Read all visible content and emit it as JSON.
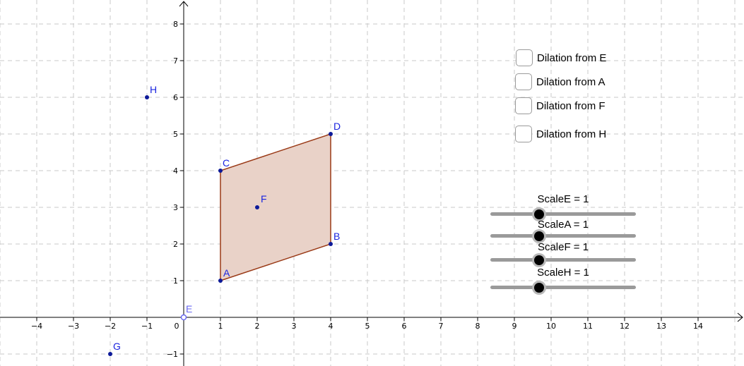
{
  "graph": {
    "axes": {
      "x_range": [
        -5,
        15.2
      ],
      "y_range": [
        -1.25,
        8.6
      ],
      "grid": true,
      "grid_style": "dashed"
    },
    "x_ticks": [
      "−4",
      "−3",
      "−2",
      "−1",
      "0",
      "1",
      "2",
      "3",
      "4",
      "5",
      "6",
      "7",
      "8",
      "9",
      "10",
      "11",
      "12",
      "13",
      "14"
    ],
    "y_ticks": [
      "8",
      "7",
      "6",
      "5",
      "4",
      "3",
      "2",
      "1",
      "−1"
    ],
    "points": [
      {
        "name": "A",
        "x": 1,
        "y": 1
      },
      {
        "name": "B",
        "x": 4,
        "y": 2
      },
      {
        "name": "C",
        "x": 1,
        "y": 4
      },
      {
        "name": "D",
        "x": 4,
        "y": 5
      },
      {
        "name": "F",
        "x": 2,
        "y": 3
      },
      {
        "name": "H",
        "x": -1,
        "y": 6
      },
      {
        "name": "G",
        "x": -2,
        "y": -1
      },
      {
        "name": "E",
        "x": 0,
        "y": 0
      }
    ],
    "polygon": [
      "A",
      "B",
      "D",
      "C"
    ],
    "colors": {
      "point": "#0d1a99",
      "label": "#1a24e0",
      "free_point": "#6a6af0",
      "polygon_fill": "#e9d2c8",
      "polygon_stroke": "#9a3a17",
      "grid": "#c8c8c8",
      "axis": "#000000"
    }
  },
  "checkboxes": [
    {
      "label": "Dilation from E",
      "checked": false
    },
    {
      "label": "Dilation from A",
      "checked": false
    },
    {
      "label": "Dilation from F",
      "checked": false
    },
    {
      "label": "Dilation from H",
      "checked": false
    }
  ],
  "sliders": [
    {
      "label": "ScaleE = 1",
      "value": 1
    },
    {
      "label": "ScaleA = 1",
      "value": 1
    },
    {
      "label": "ScaleF = 1",
      "value": 1
    },
    {
      "label": "ScaleH = 1",
      "value": 1
    }
  ]
}
